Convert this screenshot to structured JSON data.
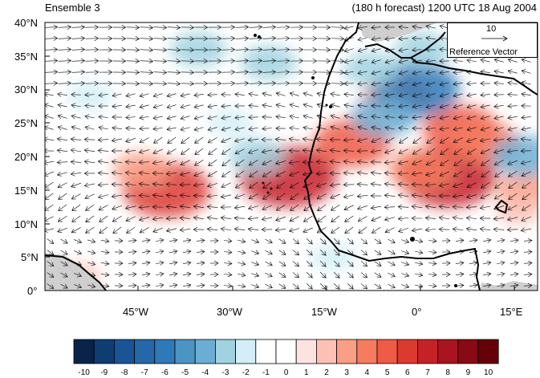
{
  "titles": {
    "left": "Ensemble 3",
    "right": "(180 h forecast) 1200 UTC 18 Aug 2004"
  },
  "axes": {
    "y_labels": [
      "40°N",
      "35°N",
      "30°N",
      "25°N",
      "20°N",
      "15°N",
      "10°N",
      "5°N",
      "0°"
    ],
    "x_labels": [
      "45°W",
      "30°W",
      "15°W",
      "0°",
      "15°E"
    ]
  },
  "map": {
    "lon_range": [
      -57,
      20
    ],
    "lat_range": [
      0,
      40
    ],
    "field_anomalies": [
      {
        "lon": -38,
        "lat": 15,
        "value": 6
      },
      {
        "lon": -42,
        "lat": 18,
        "value": 3
      },
      {
        "lon": -19,
        "lat": 17,
        "value": 7
      },
      {
        "lon": -9,
        "lat": 22,
        "value": 5
      },
      {
        "lon": 6,
        "lat": 17,
        "value": 7
      },
      {
        "lon": 2,
        "lat": 18,
        "value": 4
      },
      {
        "lon": -2,
        "lat": 29,
        "value": 4
      },
      {
        "lon": 8,
        "lat": 24,
        "value": 5
      },
      {
        "lon": 12,
        "lat": 22,
        "value": 4
      },
      {
        "lon": 18,
        "lat": 15,
        "value": 3
      },
      {
        "lon": 17,
        "lat": 12,
        "value": 2
      },
      {
        "lon": 1,
        "lat": 30,
        "value": -6
      },
      {
        "lon": -4,
        "lat": 26,
        "value": -4
      },
      {
        "lon": -6,
        "lat": 33,
        "value": -3
      },
      {
        "lon": 2,
        "lat": 36,
        "value": -3
      },
      {
        "lon": -33,
        "lat": 36,
        "value": -3
      },
      {
        "lon": -22,
        "lat": 34,
        "value": -3
      },
      {
        "lon": -28,
        "lat": 25,
        "value": -2
      },
      {
        "lon": -24,
        "lat": 20,
        "value": -3
      },
      {
        "lon": 18,
        "lat": 20,
        "value": -4
      },
      {
        "lon": -50,
        "lat": 29,
        "value": -2
      },
      {
        "lon": -12,
        "lat": 5,
        "value": -2
      },
      {
        "lon": -30,
        "lat": 5,
        "value": -1
      },
      {
        "lon": -52,
        "lat": 2,
        "value": 2
      }
    ]
  },
  "reference_vector": {
    "magnitude": "10",
    "label": "Reference Vector"
  },
  "colorbar": {
    "labels": [
      "-10",
      "-9",
      "-8",
      "-7",
      "-6",
      "-5",
      "-4",
      "-3",
      "-2",
      "-1",
      "0",
      "1",
      "2",
      "3",
      "4",
      "5",
      "6",
      "7",
      "8",
      "9",
      "10"
    ],
    "colors": [
      "#08244a",
      "#0e3c73",
      "#1a5496",
      "#2468aa",
      "#2e7ab8",
      "#4a95c6",
      "#6caed3",
      "#a0d2e0",
      "#d3eef7",
      "#ffffff",
      "#ffffff",
      "#fde2e2",
      "#fcc0b5",
      "#fb9e86",
      "#f67b5f",
      "#ef5b44",
      "#dc3a31",
      "#c52228",
      "#a8141f",
      "#870a14",
      "#650209"
    ]
  }
}
